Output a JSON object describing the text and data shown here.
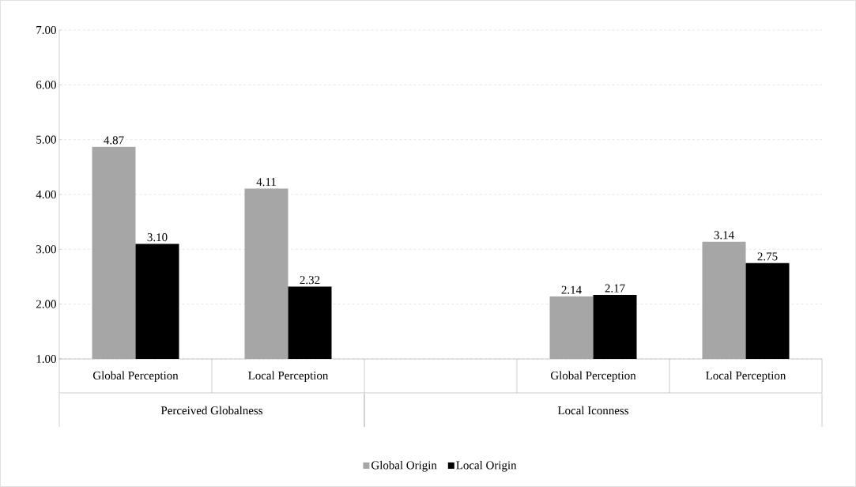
{
  "chart_data": {
    "type": "bar",
    "categories": [
      "Global Perception",
      "Local  Perception",
      null,
      "Global Perception",
      "Local  Perception"
    ],
    "series": [
      {
        "name": "Global Origin",
        "color": "#a6a6a6",
        "values": [
          4.87,
          4.11,
          null,
          2.14,
          3.14
        ],
        "value_labels": [
          "4.87",
          "4.11",
          null,
          "2.14",
          "3.14"
        ]
      },
      {
        "name": "Local Origin",
        "color": "#000000",
        "values": [
          3.1,
          2.32,
          null,
          2.17,
          2.75
        ],
        "value_labels": [
          "3.10",
          "2.32",
          null,
          "2.17",
          "2.75"
        ]
      }
    ],
    "ylim": [
      1,
      7
    ],
    "yticks": [
      {
        "value": 1,
        "label": "1.00"
      },
      {
        "value": 2,
        "label": "2.00"
      },
      {
        "value": 3,
        "label": "3.00"
      },
      {
        "value": 4,
        "label": "4.00"
      },
      {
        "value": 5,
        "label": "5.00"
      },
      {
        "value": 6,
        "label": "6.00"
      },
      {
        "value": 7,
        "label": "7.00"
      }
    ],
    "annotations": [
      "Perceived Globalness",
      "Local Iconness"
    ],
    "grid": "y",
    "legend": "bottom"
  }
}
